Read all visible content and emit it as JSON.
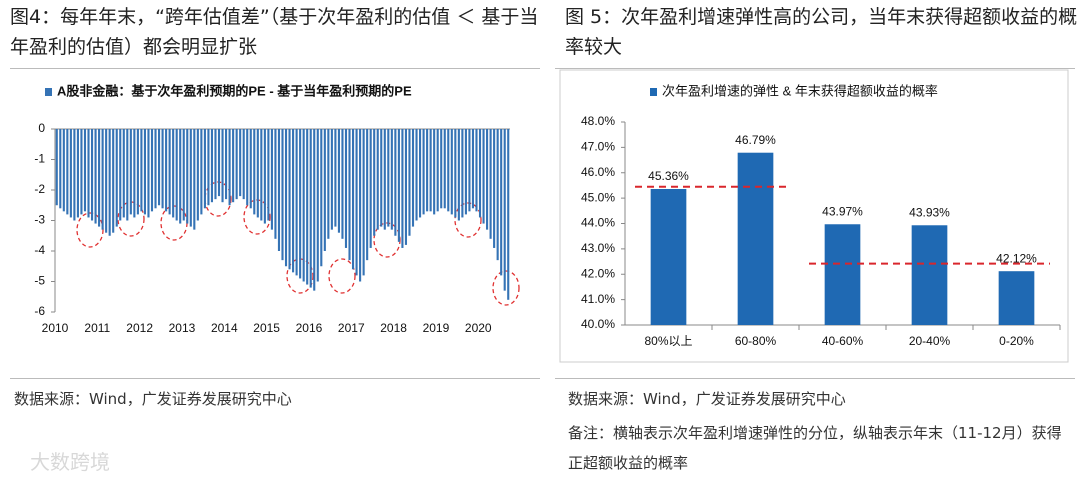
{
  "chart_data": [
    {
      "type": "bar",
      "title": "图4：每年年末，“跨年估值差”（基于次年盈利的估值 ＜ 基于当年盈利的估值）都会明显扩张",
      "series": [
        {
          "name": "A股非金融：基于次年盈利预期的PE - 基于当年盈利预期的PE",
          "color": "#3573b5",
          "values": [
            -2.5,
            -2.6,
            -2.7,
            -2.8,
            -2.9,
            -3.0,
            -2.9,
            -2.8,
            -2.7,
            -2.9,
            -3.0,
            -3.1,
            -3.2,
            -3.3,
            -3.4,
            -3.5,
            -3.4,
            -3.2,
            -3.0,
            -2.9,
            -3.0,
            -2.8,
            -2.9,
            -2.8,
            -2.7,
            -2.8,
            -2.9,
            -2.7,
            -2.6,
            -2.5,
            -2.6,
            -2.7,
            -2.8,
            -2.9,
            -3.0,
            -3.1,
            -3.0,
            -3.1,
            -3.2,
            -3.3,
            -3.0,
            -2.8,
            -2.6,
            -2.5,
            -2.4,
            -2.3,
            -2.2,
            -2.4,
            -2.3,
            -2.5,
            -2.4,
            -2.3,
            -2.2,
            -2.3,
            -2.5,
            -2.6,
            -2.8,
            -2.9,
            -3.0,
            -3.1,
            -3.0,
            -3.3,
            -3.6,
            -4.0,
            -4.3,
            -4.5,
            -4.6,
            -4.7,
            -4.8,
            -4.9,
            -5.0,
            -5.1,
            -5.2,
            -5.3,
            -5.0,
            -4.5,
            -4.0,
            -3.6,
            -3.3,
            -3.2,
            -3.4,
            -3.6,
            -3.9,
            -4.3,
            -4.6,
            -4.8,
            -5.0,
            -4.8,
            -4.3,
            -3.9,
            -3.5,
            -3.3,
            -3.2,
            -3.3,
            -3.2,
            -3.3,
            -3.5,
            -3.7,
            -3.9,
            -3.8,
            -3.5,
            -3.2,
            -3.0,
            -2.9,
            -2.8,
            -2.7,
            -2.7,
            -2.8,
            -2.7,
            -2.6,
            -2.6,
            -2.7,
            -2.8,
            -2.9,
            -3.0,
            -2.9,
            -2.8,
            -2.7,
            -2.6,
            -2.7,
            -2.9,
            -3.1,
            -3.3,
            -3.6,
            -3.9,
            -4.3,
            -4.8,
            -5.3,
            -5.6
          ]
        }
      ],
      "categories": [
        "2010",
        null,
        null,
        null,
        null,
        null,
        null,
        null,
        null,
        null,
        null,
        null,
        "2011",
        null,
        null,
        null,
        null,
        null,
        null,
        null,
        null,
        null,
        null,
        null,
        "2012",
        null,
        null,
        null,
        null,
        null,
        null,
        null,
        null,
        null,
        null,
        null,
        "2013",
        null,
        null,
        null,
        null,
        null,
        null,
        null,
        null,
        null,
        null,
        null,
        "2014",
        null,
        null,
        null,
        null,
        null,
        null,
        null,
        null,
        null,
        null,
        null,
        "2015",
        null,
        null,
        null,
        null,
        null,
        null,
        null,
        null,
        null,
        null,
        null,
        "2016",
        null,
        null,
        null,
        null,
        null,
        null,
        null,
        null,
        null,
        null,
        null,
        "2017",
        null,
        null,
        null,
        null,
        null,
        null,
        null,
        null,
        null,
        null,
        null,
        "2018",
        null,
        null,
        null,
        null,
        null,
        null,
        null,
        null,
        null,
        null,
        null,
        "2019",
        null,
        null,
        null,
        null,
        null,
        null,
        null,
        null,
        null,
        null,
        null,
        "2020",
        null,
        null,
        null,
        null,
        null,
        null,
        null,
        null
      ],
      "ylim": [
        -6,
        0
      ],
      "yticks": [
        0,
        -1,
        -2,
        -3,
        -4,
        -5,
        -6
      ],
      "source": "数据来源：Wind，广发证券发展研究中心"
    },
    {
      "type": "bar",
      "title": "图 5：次年盈利增速弹性高的公司，当年末获得超额收益的概率较大",
      "series": [
        {
          "name": "次年盈利增速的弹性 & 年末获得超额收益的概率",
          "color": "#1f69b3",
          "values": [
            45.36,
            46.79,
            43.97,
            43.93,
            42.12
          ],
          "value_labels": [
            "45.36%",
            "46.79%",
            "43.97%",
            "43.93%",
            "42.12%"
          ]
        }
      ],
      "categories": [
        "80%以上",
        "60-80%",
        "40-60%",
        "20-40%",
        "0-20%"
      ],
      "ylim": [
        40,
        48
      ],
      "yticks": [
        {
          "value": 40,
          "label": "40.0%"
        },
        {
          "value": 41,
          "label": "41.0%"
        },
        {
          "value": 42,
          "label": "42.0%"
        },
        {
          "value": 43,
          "label": "43.0%"
        },
        {
          "value": 44,
          "label": "44.0%"
        },
        {
          "value": 45,
          "label": "45.0%"
        },
        {
          "value": 46,
          "label": "46.0%"
        },
        {
          "value": 47,
          "label": "47.0%"
        },
        {
          "value": 48,
          "label": "48.0%"
        }
      ],
      "reference_lines": [
        {
          "value": 45.45,
          "from": 0,
          "to": 1,
          "color": "#d9262c"
        },
        {
          "value": 42.42,
          "from": 2,
          "to": 4,
          "color": "#d9262c"
        }
      ],
      "source": "数据来源：Wind，广发证券发展研究中心",
      "note": "备注：横轴表示次年盈利增速弹性的分位，纵轴表示年末（11-12月）获得正超额收益的概率"
    }
  ],
  "watermark": "大数跨境"
}
